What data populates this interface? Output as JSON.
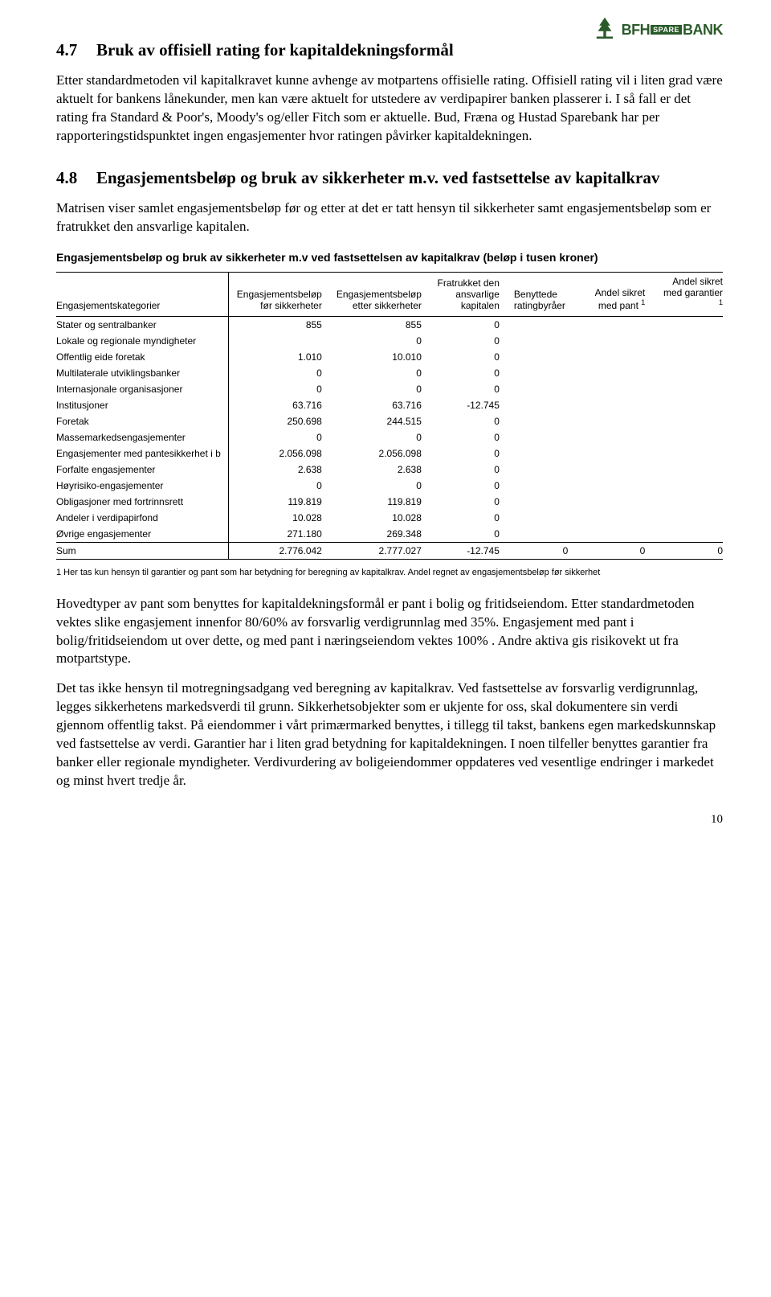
{
  "logo": {
    "prefix": "BFH",
    "mid": "SPARE",
    "suffix": "BANK",
    "tree_color": "#2a5a2a"
  },
  "section47": {
    "num": "4.7",
    "title": "Bruk av offisiell rating for kapitaldekningsformål",
    "para": "Etter standardmetoden vil kapitalkravet kunne avhenge av motpartens offisielle rating. Offisiell rating vil i liten grad være aktuelt for bankens lånekunder, men kan være aktuelt for utstedere av verdipapirer banken plasserer i. I så fall er det rating fra Standard & Poor's, Moody's og/eller Fitch som er aktuelle. Bud, Fræna og Hustad Sparebank har per rapporteringstidspunktet ingen engasjementer hvor ratingen påvirker kapitaldekningen."
  },
  "section48": {
    "num": "4.8",
    "title": "Engasjementsbeløp og bruk av sikkerheter m.v. ved fastsettelse av kapitalkrav",
    "para": "Matrisen viser samlet engasjementsbeløp før og etter at det er tatt hensyn til sikkerheter samt engasjementsbeløp som er fratrukket den ansvarlige kapitalen."
  },
  "table": {
    "caption": "Engasjementsbeløp og bruk av sikkerheter m.v ved fastsettelsen av kapitalkrav (beløp i tusen kroner)",
    "headers": {
      "col0": "Engasjementskategorier",
      "col1": "Engasjementsbeløp før sikkerheter",
      "col2": "Engasjementsbeløp etter sikkerheter",
      "col3": "Fratrukket den ansvarlige kapitalen",
      "col4": "Benyttede ratingbyråer",
      "col5_a": "Andel sikret med pant ",
      "col5_b": "1",
      "col6_a": "Andel sikret med garantier ",
      "col6_b": "1"
    },
    "rows": [
      {
        "label": "Stater og sentralbanker",
        "c1": "855",
        "c2": "855",
        "c3": "0",
        "c4": "",
        "c5": "",
        "c6": ""
      },
      {
        "label": "Lokale og regionale myndigheter",
        "c1": "",
        "c2": "0",
        "c3": "0",
        "c4": "",
        "c5": "",
        "c6": ""
      },
      {
        "label": "Offentlig eide foretak",
        "c1": "1.010",
        "c2": "10.010",
        "c3": "0",
        "c4": "",
        "c5": "",
        "c6": ""
      },
      {
        "label": "Multilaterale utviklingsbanker",
        "c1": "0",
        "c2": "0",
        "c3": "0",
        "c4": "",
        "c5": "",
        "c6": ""
      },
      {
        "label": "Internasjonale organisasjoner",
        "c1": "0",
        "c2": "0",
        "c3": "0",
        "c4": "",
        "c5": "",
        "c6": ""
      },
      {
        "label": "Institusjoner",
        "c1": "63.716",
        "c2": "63.716",
        "c3": "-12.745",
        "c4": "",
        "c5": "",
        "c6": ""
      },
      {
        "label": "Foretak",
        "c1": "250.698",
        "c2": "244.515",
        "c3": "0",
        "c4": "",
        "c5": "",
        "c6": ""
      },
      {
        "label": "Massemarkedsengasjementer",
        "c1": "0",
        "c2": "0",
        "c3": "0",
        "c4": "",
        "c5": "",
        "c6": ""
      },
      {
        "label": "Engasjementer med pantesikkerhet i b",
        "c1": "2.056.098",
        "c2": "2.056.098",
        "c3": "0",
        "c4": "",
        "c5": "",
        "c6": ""
      },
      {
        "label": "Forfalte engasjementer",
        "c1": "2.638",
        "c2": "2.638",
        "c3": "0",
        "c4": "",
        "c5": "",
        "c6": ""
      },
      {
        "label": "Høyrisiko-engasjementer",
        "c1": "0",
        "c2": "0",
        "c3": "0",
        "c4": "",
        "c5": "",
        "c6": ""
      },
      {
        "label": "Obligasjoner med fortrinnsrett",
        "c1": "119.819",
        "c2": "119.819",
        "c3": "0",
        "c4": "",
        "c5": "",
        "c6": ""
      },
      {
        "label": "Andeler i verdipapirfond",
        "c1": "10.028",
        "c2": "10.028",
        "c3": "0",
        "c4": "",
        "c5": "",
        "c6": ""
      },
      {
        "label": "Øvrige engasjementer",
        "c1": "271.180",
        "c2": "269.348",
        "c3": "0",
        "c4": "",
        "c5": "",
        "c6": ""
      }
    ],
    "sum": {
      "label": "Sum",
      "c1": "2.776.042",
      "c2": "2.777.027",
      "c3": "-12.745",
      "c4": "0",
      "c5": "0",
      "c6": "0"
    }
  },
  "footnote": "1 Her tas kun hensyn til garantier og pant som har betydning for beregning av kapitalkrav. Andel regnet av engasjementsbeløp før sikkerhet",
  "closing": {
    "p1": "Hovedtyper av pant som benyttes for kapitaldekningsformål er pant i bolig og fritidseiendom. Etter standardmetoden vektes slike engasjement innenfor 80/60% av forsvarlig verdigrunnlag med 35%. Engasjement med pant i bolig/fritidseiendom ut over dette, og med pant i næringseiendom vektes 100% . Andre aktiva gis risikovekt ut fra motpartstype.",
    "p2": "Det tas ikke hensyn til motregningsadgang ved beregning av kapitalkrav. Ved fastsettelse av forsvarlig verdigrunnlag, legges sikkerhetens markedsverdi til grunn. Sikkerhetsobjekter som er ukjente for oss, skal dokumentere sin verdi gjennom offentlig takst. På eiendommer i vårt primærmarked benyttes, i tillegg til takst, bankens egen markedskunnskap ved fastsettelse av verdi. Garantier har i liten grad betydning for kapitaldekningen. I noen tilfeller benyttes garantier fra banker eller regionale myndigheter. Verdivurdering av boligeiendommer oppdateres ved vesentlige endringer i markedet og minst hvert tredje år."
  },
  "page_number": "10"
}
